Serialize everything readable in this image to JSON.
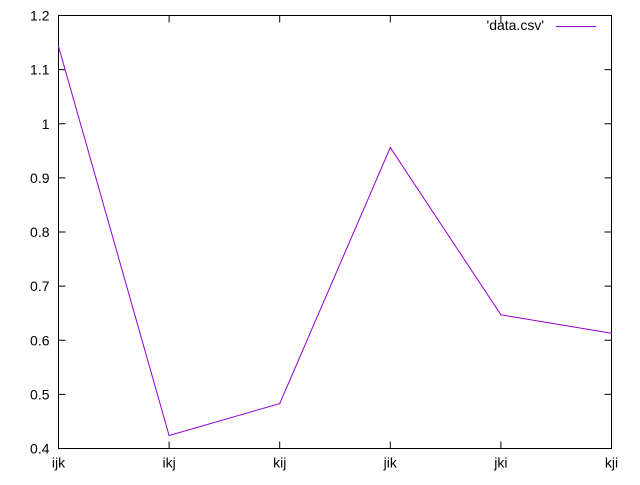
{
  "chart_data": {
    "type": "line",
    "categories": [
      "ijk",
      "ikj",
      "kij",
      "jik",
      "jki",
      "kji"
    ],
    "series": [
      {
        "name": "'data.csv'",
        "values": [
          1.143,
          0.424,
          0.483,
          0.956,
          0.647,
          0.613
        ],
        "color": "#9400d3"
      }
    ],
    "ylim": [
      0.4,
      1.2
    ],
    "yticks": [
      "0.4",
      "0.5",
      "0.6",
      "0.7",
      "0.8",
      "0.9",
      "1",
      "1.1",
      "1.2"
    ],
    "grid": false,
    "legend": "top-right",
    "title": "",
    "xlabel": "",
    "ylabel": ""
  }
}
